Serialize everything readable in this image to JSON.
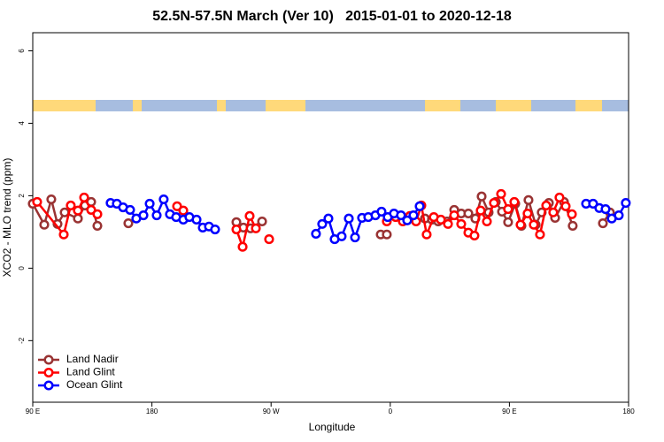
{
  "chart_data": {
    "type": "line",
    "title": "52.5N-57.5N March (Ver 10)   2015-01-01 to 2020-12-18",
    "x_label": "Longitude",
    "y_label": "XCO2 - MLO trend (ppm)",
    "xlim": [
      90,
      540
    ],
    "ylim": [
      -3.7,
      6.5
    ],
    "xticks": [
      {
        "value": 90,
        "label": "90 E"
      },
      180,
      {
        "value": 270,
        "label": "90 W"
      },
      {
        "value": 360,
        "label": "0"
      },
      {
        "value": 450,
        "label": "90 E"
      },
      {
        "value": 540,
        "label": "180"
      }
    ],
    "yticks": [
      -2,
      0,
      2,
      4,
      6
    ],
    "grid": false,
    "legend": "bottom-left",
    "series": [
      {
        "name": "Land Nadir",
        "color": "#993333",
        "x": [
          90,
          98.7,
          104.0,
          108.7,
          114.1,
          124.1,
          129.4,
          134.1,
          138.8,
          null,
          162.2,
          null,
          243.8,
          249.1,
          254.5,
          263.2,
          null,
          352.8,
          357.4,
          null,
          386.2,
          391.5,
          396.2,
          402.9,
          408.3,
          413.6,
          419.0,
          424.3,
          429.0,
          434.3,
          439.7,
          444.4,
          449.0,
          454.4,
          459.1,
          464.4,
          469.8,
          474.4,
          479.8,
          484.5,
          491.2,
          497.8,
          null,
          520.6,
          525.9
        ],
        "values": [
          1.78,
          1.2,
          1.9,
          1.22,
          1.54,
          1.37,
          1.73,
          1.83,
          1.17,
          null,
          1.24,
          null,
          1.27,
          1.12,
          1.1,
          1.29,
          null,
          0.93,
          0.93,
          null,
          1.37,
          1.34,
          1.29,
          1.29,
          1.61,
          1.51,
          1.51,
          1.37,
          1.98,
          1.54,
          1.83,
          1.56,
          1.27,
          1.78,
          1.17,
          1.88,
          1.2,
          1.54,
          1.8,
          1.39,
          1.83,
          1.17,
          null,
          1.24,
          1.54
        ]
      },
      {
        "name": "Land Glint",
        "color": "#ff0000",
        "x": [
          93.3,
          113.4,
          118.7,
          124.1,
          128.8,
          134.1,
          138.8,
          null,
          199.0,
          203.7,
          null,
          243.8,
          248.5,
          253.8,
          258.5,
          null,
          268.5,
          null,
          357.4,
          364.1,
          369.5,
          374.8,
          379.5,
          383.5,
          387.5,
          392.9,
          398.2,
          403.6,
          408.3,
          413.6,
          419.0,
          423.6,
          428.3,
          433.0,
          438.3,
          443.7,
          449.0,
          453.7,
          458.4,
          463.7,
          468.4,
          473.1,
          477.8,
          483.1,
          487.8,
          492.5,
          497.2
        ],
        "values": [
          1.83,
          0.93,
          1.73,
          1.59,
          1.95,
          1.61,
          1.49,
          null,
          1.71,
          1.59,
          null,
          1.07,
          0.59,
          1.44,
          1.1,
          null,
          0.8,
          null,
          1.29,
          1.41,
          1.29,
          1.44,
          1.29,
          1.73,
          0.93,
          1.41,
          1.34,
          1.22,
          1.46,
          1.22,
          0.98,
          0.9,
          1.59,
          1.29,
          1.8,
          2.05,
          1.63,
          1.83,
          1.2,
          1.51,
          1.2,
          0.93,
          1.73,
          1.54,
          1.95,
          1.71,
          1.49
        ]
      },
      {
        "name": "Ocean Glint",
        "color": "#0000ff",
        "x": [
          148.8,
          153.5,
          158.2,
          163.5,
          168.2,
          173.6,
          178.3,
          183.6,
          188.9,
          193.6,
          198.3,
          203.7,
          208.3,
          213.7,
          218.4,
          223.1,
          227.7,
          null,
          303.9,
          308.6,
          313.3,
          318.0,
          323.3,
          328.7,
          333.4,
          338.7,
          343.4,
          348.8,
          353.4,
          358.1,
          362.8,
          368.1,
          372.8,
          377.5,
          382.2,
          null,
          507.9,
          513.2,
          517.9,
          522.6,
          527.3,
          532.6,
          537.9
        ],
        "values": [
          1.8,
          1.78,
          1.68,
          1.61,
          1.37,
          1.46,
          1.78,
          1.46,
          1.9,
          1.49,
          1.41,
          1.34,
          1.41,
          1.34,
          1.12,
          1.15,
          1.07,
          null,
          0.95,
          1.22,
          1.37,
          0.8,
          0.88,
          1.37,
          0.85,
          1.39,
          1.41,
          1.46,
          1.56,
          1.41,
          1.51,
          1.46,
          1.32,
          1.46,
          1.71,
          null,
          1.78,
          1.78,
          1.66,
          1.63,
          1.37,
          1.46,
          1.8
        ]
      }
    ]
  }
}
